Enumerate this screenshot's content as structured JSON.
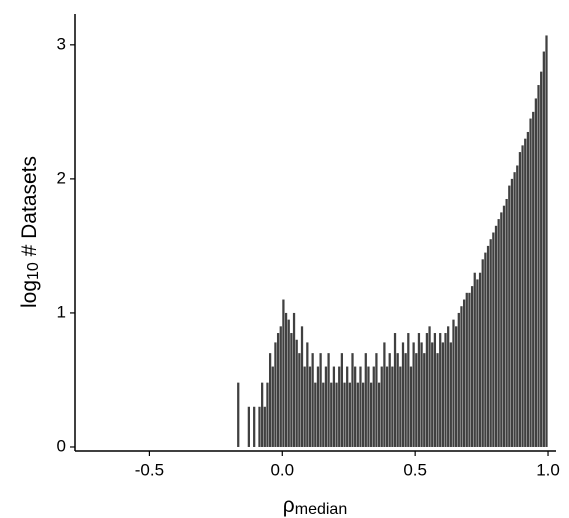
{
  "chart_data": {
    "type": "histogram",
    "xlabel": {
      "main": "ρ",
      "sub": "median"
    },
    "ylabel": {
      "main": "log",
      "sub": "10",
      "rest": " # Datasets"
    },
    "color": "#404040",
    "xlim": [
      -0.78,
      1.03
    ],
    "ylim": [
      -0.03,
      3.23
    ],
    "xticks": [
      -0.5,
      {
        "value": 0,
        "label": "0.0"
      },
      0.5,
      {
        "value": 1,
        "label": "1.0"
      }
    ],
    "yticks": [
      0,
      1,
      2,
      3
    ],
    "bins": [
      -0.2,
      -0.19,
      -0.18,
      -0.17,
      -0.16,
      -0.15,
      -0.14,
      -0.13,
      -0.12,
      -0.11,
      -0.1,
      -0.09,
      -0.08,
      -0.07,
      -0.06,
      -0.05,
      -0.04,
      -0.03,
      -0.02,
      -0.01,
      0,
      0.01,
      0.02,
      0.03,
      0.04,
      0.05,
      0.06,
      0.07,
      0.08,
      0.09,
      0.1,
      0.11,
      0.12,
      0.13,
      0.14,
      0.15,
      0.16,
      0.17,
      0.18,
      0.19,
      0.2,
      0.21,
      0.22,
      0.23,
      0.24,
      0.25,
      0.26,
      0.27,
      0.28,
      0.29,
      0.3,
      0.31,
      0.32,
      0.33,
      0.34,
      0.35,
      0.36,
      0.37,
      0.38,
      0.39,
      0.4,
      0.41,
      0.42,
      0.43,
      0.44,
      0.45,
      0.46,
      0.47,
      0.48,
      0.49,
      0.5,
      0.51,
      0.52,
      0.53,
      0.54,
      0.55,
      0.56,
      0.57,
      0.58,
      0.59,
      0.6,
      0.61,
      0.62,
      0.63,
      0.64,
      0.65,
      0.66,
      0.67,
      0.68,
      0.69,
      0.7,
      0.71,
      0.72,
      0.73,
      0.74,
      0.75,
      0.76,
      0.77,
      0.78,
      0.79,
      0.8,
      0.81,
      0.82,
      0.83,
      0.84,
      0.85,
      0.86,
      0.87,
      0.88,
      0.89,
      0.9,
      0.91,
      0.92,
      0.93,
      0.94,
      0.95,
      0.96,
      0.97,
      0.98,
      0.99,
      1.0
    ],
    "values": [
      0,
      0,
      0,
      0.48,
      0,
      0,
      0,
      0.3,
      0,
      0.3,
      0,
      0.3,
      0.48,
      0.3,
      0.48,
      0.7,
      0.6,
      0.78,
      0.85,
      0.9,
      1.1,
      1.0,
      0.95,
      0.85,
      1.0,
      0.8,
      0.7,
      0.9,
      0.6,
      0.78,
      0.6,
      0.7,
      0.48,
      0.6,
      0.7,
      0.48,
      0.6,
      0.7,
      0.48,
      0.6,
      0.48,
      0.6,
      0.7,
      0.48,
      0.6,
      0.48,
      0.7,
      0.6,
      0.48,
      0.6,
      0.48,
      0.7,
      0.6,
      0.48,
      0.6,
      0.7,
      0.48,
      0.6,
      0.78,
      0.6,
      0.7,
      0.6,
      0.85,
      0.7,
      0.6,
      0.78,
      0.7,
      0.85,
      0.6,
      0.78,
      0.7,
      0.85,
      0.78,
      0.7,
      0.85,
      0.9,
      0.78,
      0.85,
      0.7,
      0.85,
      0.78,
      0.85,
      0.9,
      0.78,
      0.95,
      0.9,
      1.0,
      1.05,
      1.1,
      1.15,
      1.15,
      1.2,
      1.3,
      1.25,
      1.3,
      1.4,
      1.45,
      1.5,
      1.55,
      1.6,
      1.65,
      1.7,
      1.75,
      1.8,
      1.85,
      1.95,
      2.0,
      2.05,
      2.1,
      2.2,
      2.25,
      2.3,
      2.35,
      2.45,
      2.5,
      2.6,
      2.7,
      2.8,
      2.95,
      3.07
    ]
  }
}
